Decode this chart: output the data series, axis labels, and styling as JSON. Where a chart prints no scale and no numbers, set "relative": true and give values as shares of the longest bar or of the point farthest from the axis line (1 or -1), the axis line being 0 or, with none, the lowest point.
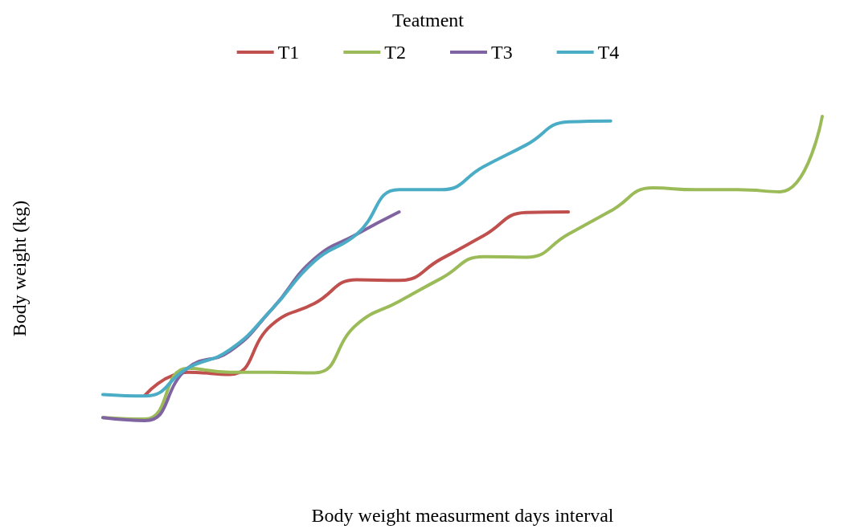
{
  "chart_data": {
    "type": "line",
    "legend_title": "Teatment",
    "xlabel": "Body weight measurment days interval",
    "ylabel": "Body weight (kg)",
    "relative": true,
    "legend": "top",
    "grid": false,
    "marker": "none",
    "line_style": "solid",
    "categories": [
      null,
      null,
      null,
      null,
      null,
      null,
      null,
      null,
      null,
      null,
      null,
      null,
      null,
      null,
      null,
      null,
      null,
      null
    ],
    "series": [
      {
        "name": "T1",
        "color": "#c0504d",
        "values": [
          null,
          0.084,
          0.159,
          0.152,
          0.316,
          0.385,
          0.463,
          0.461,
          0.532,
          0.608,
          0.684,
          0.686,
          null,
          null,
          null,
          null,
          null,
          null
        ]
      },
      {
        "name": "T2",
        "color": "#9bbb59",
        "values": [
          0.01,
          0.005,
          0.172,
          0.159,
          0.159,
          0.157,
          0.316,
          0.392,
          0.468,
          0.539,
          0.537,
          0.613,
          0.689,
          0.765,
          0.759,
          0.759,
          0.752,
          1
        ]
      },
      {
        "name": "T3",
        "color": "#8064a2",
        "values": [
          0.01,
          0,
          0.172,
          0.228,
          0.367,
          0.532,
          0.613,
          0.686,
          null,
          null,
          null,
          null,
          null,
          null,
          null,
          null,
          null,
          null
        ]
      },
      {
        "name": "T4",
        "color": "#4bacc6",
        "values": [
          0.086,
          0.081,
          0.172,
          0.233,
          0.367,
          0.524,
          0.613,
          0.759,
          0.759,
          0.835,
          0.906,
          0.982,
          0.985,
          null,
          null,
          null,
          null,
          null
        ]
      }
    ]
  }
}
